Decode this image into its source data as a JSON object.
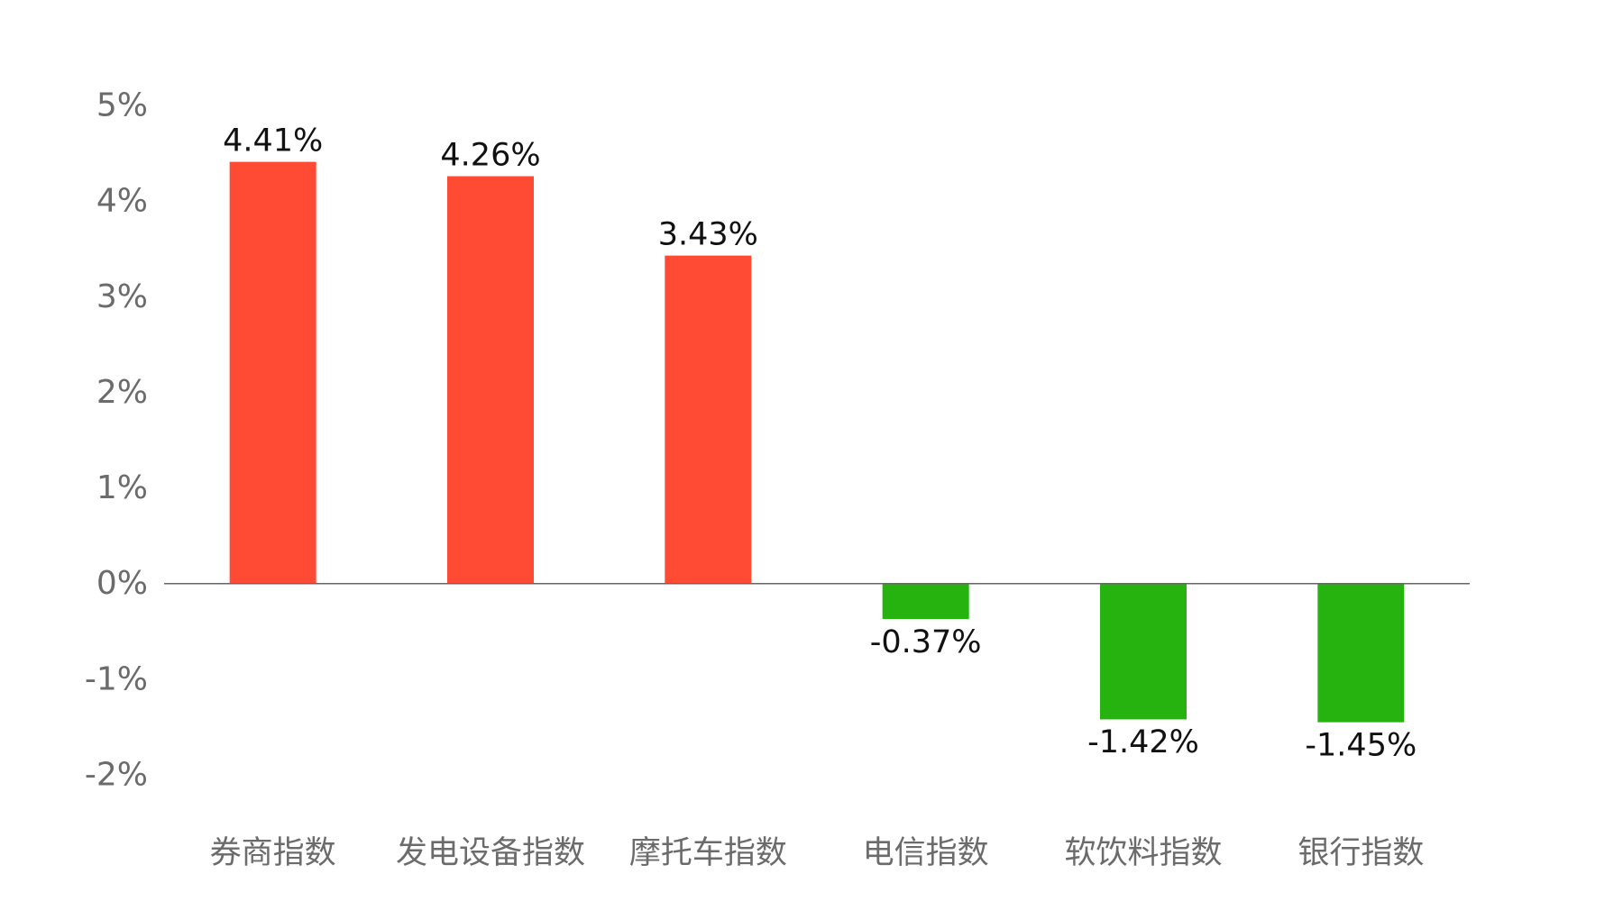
{
  "chart_data": {
    "type": "bar",
    "categories": [
      "券商指数",
      "发电设备指数",
      "摩托车指数",
      "电信指数",
      "软饮料指数",
      "银行指数"
    ],
    "values": [
      4.41,
      4.26,
      3.43,
      -0.37,
      -1.42,
      -1.45
    ],
    "value_labels": [
      "4.41%",
      "4.26%",
      "3.43%",
      "-0.37%",
      "-1.42%",
      "-1.45%"
    ],
    "y_ticks": [
      5,
      4,
      3,
      2,
      1,
      0,
      -1,
      -2
    ],
    "y_tick_labels": [
      "5%",
      "4%",
      "3%",
      "2%",
      "1%",
      "0%",
      "-1%",
      "-2%"
    ],
    "ylim": [
      -2,
      5
    ],
    "title": "",
    "xlabel": "",
    "ylabel": "",
    "grid": false,
    "legend": "none",
    "colors": {
      "positive": "#ff4b33",
      "negative": "#27b30f",
      "baseline": "#666666"
    }
  }
}
